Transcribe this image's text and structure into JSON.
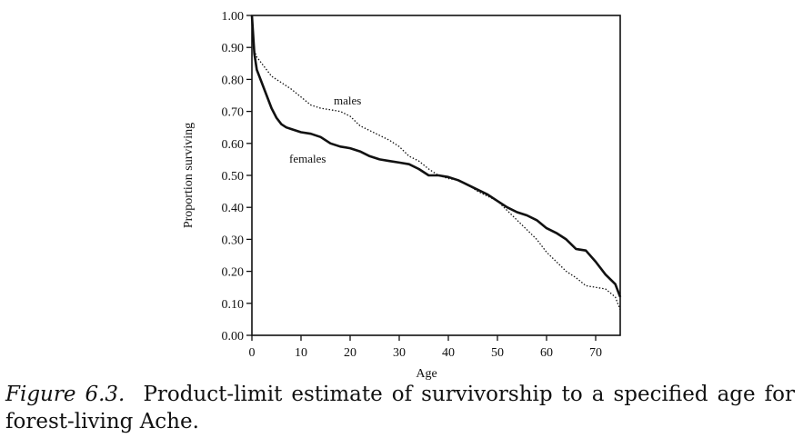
{
  "chart_data": {
    "type": "line",
    "xlabel": "Age",
    "ylabel": "Proportion surviving",
    "xlim": [
      0,
      75
    ],
    "ylim": [
      0,
      1
    ],
    "x_ticks": [
      0,
      10,
      20,
      30,
      40,
      50,
      60,
      70
    ],
    "x_tick_labels": [
      "0",
      "10",
      "20",
      "30",
      "40",
      "50",
      "60",
      "70"
    ],
    "y_ticks": [
      0,
      0.1,
      0.2,
      0.3,
      0.4,
      0.5,
      0.6,
      0.7,
      0.8,
      0.9,
      1.0
    ],
    "y_tick_labels": [
      "0.00",
      "0.10",
      "0.20",
      "0.30",
      "0.40",
      "0.50",
      "0.60",
      "0.70",
      "0.80",
      "0.90",
      "1.00"
    ],
    "grid": false,
    "series": [
      {
        "name": "females",
        "style": "solid",
        "x": [
          0,
          0.5,
          1,
          2,
          3,
          4,
          5,
          6,
          7,
          8,
          9,
          10,
          12,
          14,
          16,
          18,
          20,
          22,
          24,
          26,
          28,
          30,
          32,
          34,
          36,
          38,
          40,
          42,
          44,
          46,
          48,
          50,
          52,
          54,
          56,
          58,
          60,
          62,
          64,
          66,
          68,
          70,
          72,
          74,
          75
        ],
        "y": [
          1.0,
          0.88,
          0.83,
          0.79,
          0.75,
          0.71,
          0.68,
          0.66,
          0.65,
          0.645,
          0.64,
          0.635,
          0.63,
          0.62,
          0.6,
          0.59,
          0.585,
          0.575,
          0.56,
          0.55,
          0.545,
          0.54,
          0.535,
          0.52,
          0.5,
          0.5,
          0.495,
          0.485,
          0.47,
          0.455,
          0.44,
          0.42,
          0.4,
          0.385,
          0.375,
          0.36,
          0.335,
          0.32,
          0.3,
          0.27,
          0.265,
          0.23,
          0.19,
          0.16,
          0.12
        ]
      },
      {
        "name": "males",
        "style": "dotted",
        "x": [
          0,
          0.5,
          1,
          2,
          3,
          4,
          5,
          6,
          8,
          10,
          12,
          14,
          16,
          18,
          20,
          22,
          24,
          26,
          28,
          30,
          32,
          34,
          36,
          38,
          40,
          42,
          44,
          46,
          48,
          50,
          52,
          54,
          56,
          58,
          60,
          62,
          64,
          66,
          68,
          70,
          72,
          74,
          75
        ],
        "y": [
          1.0,
          0.89,
          0.87,
          0.85,
          0.83,
          0.81,
          0.8,
          0.79,
          0.77,
          0.745,
          0.72,
          0.71,
          0.705,
          0.7,
          0.685,
          0.655,
          0.64,
          0.625,
          0.61,
          0.59,
          0.56,
          0.545,
          0.52,
          0.5,
          0.49,
          0.485,
          0.47,
          0.45,
          0.435,
          0.42,
          0.39,
          0.36,
          0.33,
          0.3,
          0.26,
          0.23,
          0.2,
          0.18,
          0.155,
          0.15,
          0.145,
          0.12,
          0.08
        ]
      }
    ]
  },
  "caption": {
    "figure_label": "Figure 6.3.",
    "text": "Product-limit estimate of survivorship to a specified age for forest-living Ache."
  }
}
